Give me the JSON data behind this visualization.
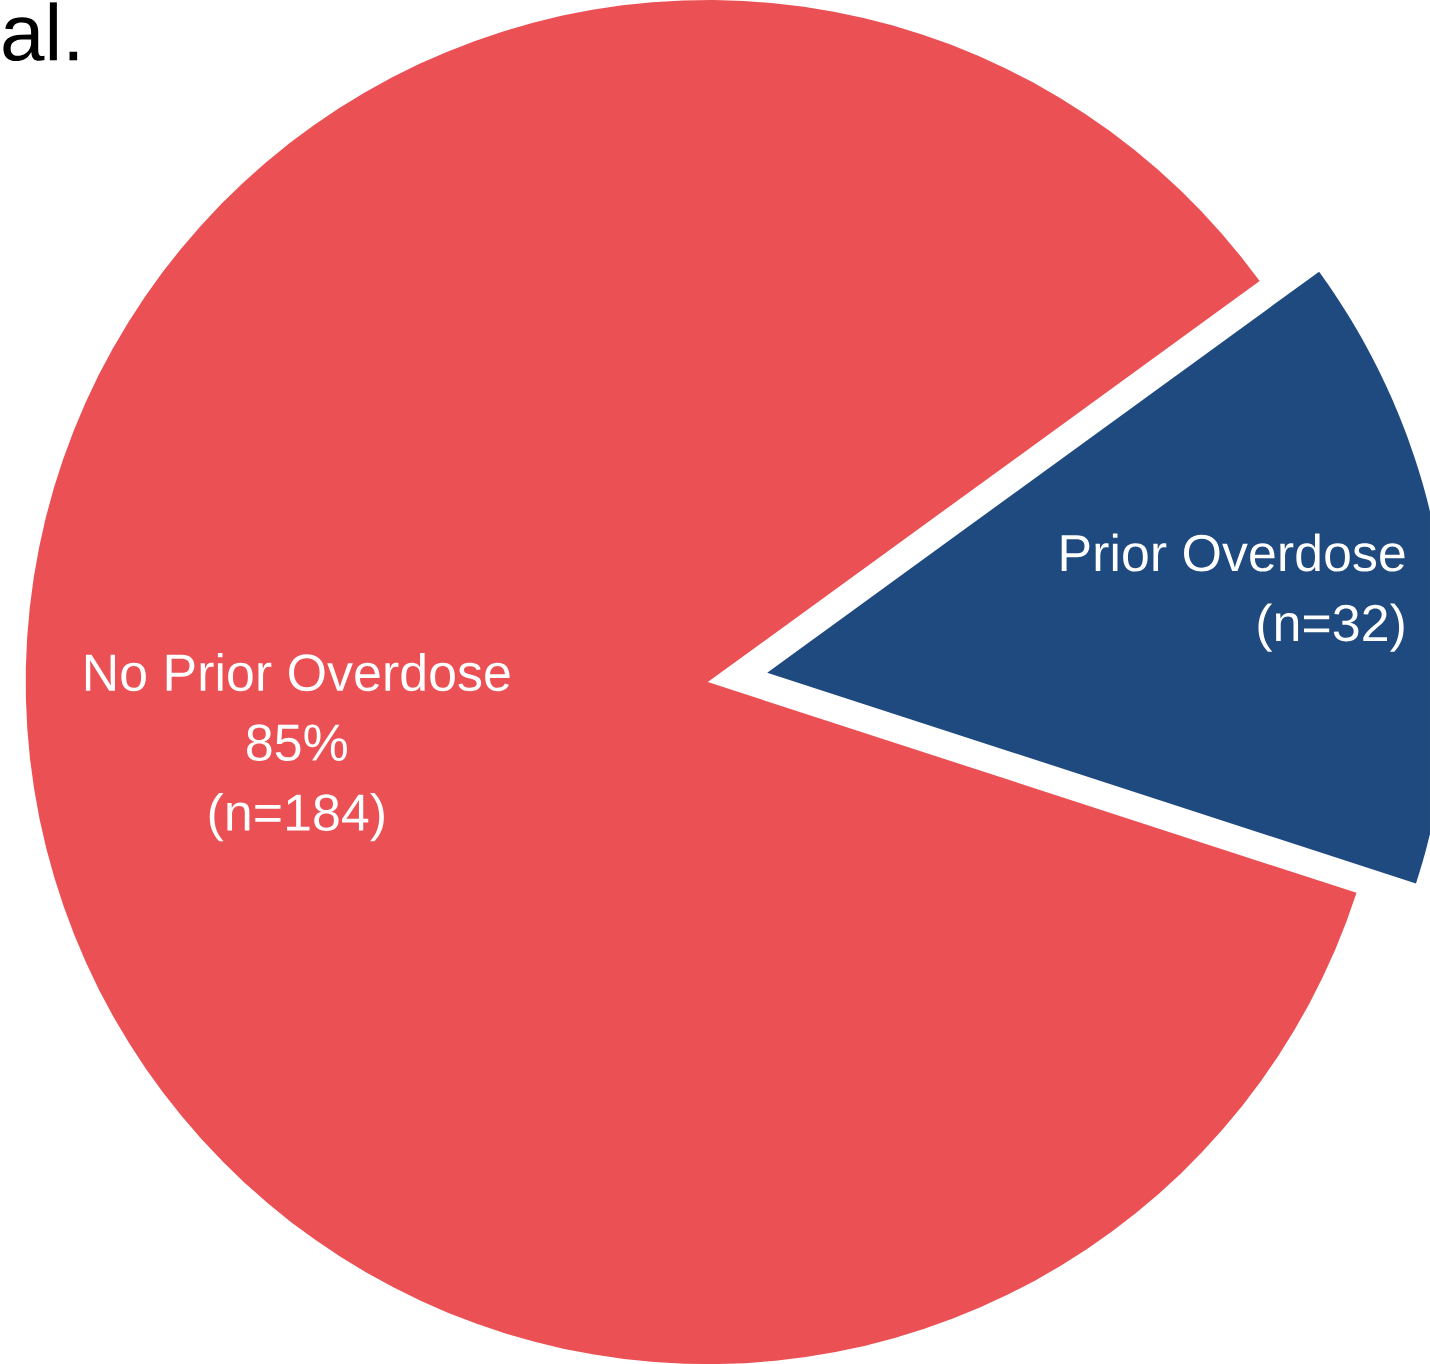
{
  "chart_data": {
    "type": "pie",
    "title": "al.",
    "categories": [
      "No Prior Overdose",
      "Prior Overdose"
    ],
    "values": [
      85,
      15
    ],
    "colors": [
      "#eb5054",
      "#1f4a7f"
    ],
    "value_labels": [
      "85%",
      null
    ],
    "annotations": [
      "(n=184)",
      "(n=32)"
    ]
  }
}
